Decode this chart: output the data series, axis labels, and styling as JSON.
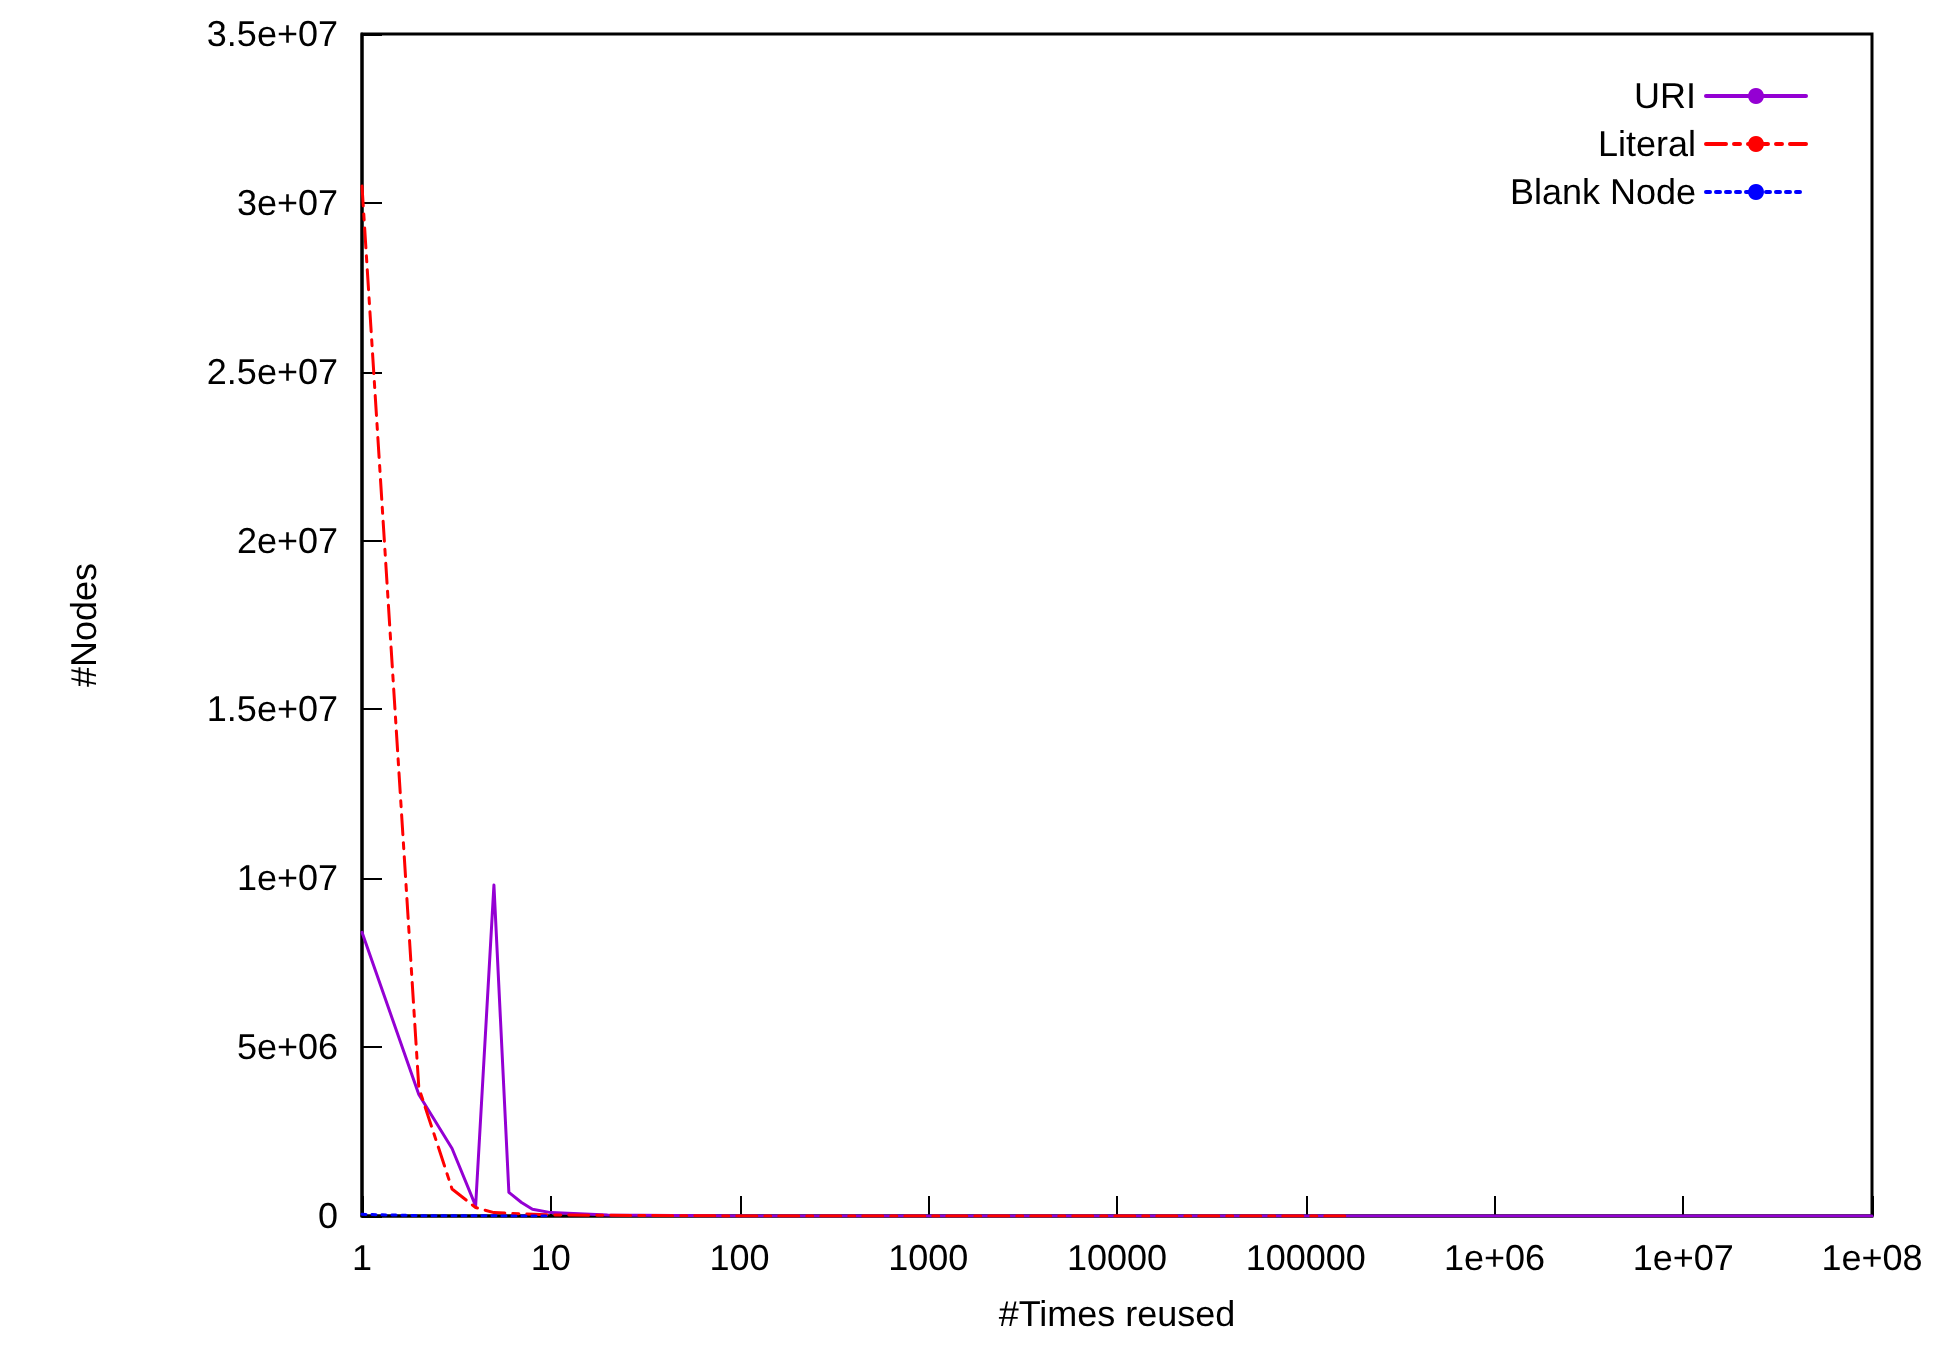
{
  "chart_data": {
    "type": "line",
    "xlabel": "#Times reused",
    "ylabel": "#Nodes",
    "log": "x",
    "xlim": [
      1,
      100000000
    ],
    "xticks": [
      1,
      10,
      100,
      1000,
      10000,
      100000,
      {
        "value": 1000000,
        "label": "1e+06"
      },
      {
        "value": 10000000,
        "label": "1e+07"
      },
      {
        "value": 100000000,
        "label": "1e+08"
      }
    ],
    "ylim": [
      0,
      35000000
    ],
    "yticks": [
      0,
      {
        "value": 5000000,
        "label": "5e+06"
      },
      {
        "value": 10000000,
        "label": "1e+07"
      },
      {
        "value": 15000000,
        "label": "1.5e+07"
      },
      {
        "value": 20000000,
        "label": "2e+07"
      },
      {
        "value": 25000000,
        "label": "2.5e+07"
      },
      {
        "value": 30000000,
        "label": "3e+07"
      },
      {
        "value": 35000000,
        "label": "3.5e+07"
      }
    ],
    "grid": false,
    "legend": "top right",
    "marker": "none",
    "series": [
      {
        "name": "URI",
        "color": "#9400d3",
        "line_style": "solid",
        "x": [
          1,
          2,
          3,
          4,
          5,
          6,
          7,
          8,
          10,
          20,
          100,
          100000000
        ],
        "values": [
          8400000,
          3600000,
          2000000,
          300000,
          9800000,
          700000,
          400000,
          200000,
          100000,
          30000,
          0,
          0
        ]
      },
      {
        "name": "Literal",
        "color": "#ff0000",
        "line_style": "dashed",
        "x": [
          1,
          2,
          3,
          4,
          5,
          10,
          100,
          170000
        ],
        "values": [
          30500000,
          3800000,
          800000,
          250000,
          100000,
          30000,
          0,
          0
        ]
      },
      {
        "name": "Blank Node",
        "color": "#0000ff",
        "line_style": "dotted",
        "x": [
          1,
          2,
          10
        ],
        "values": [
          50000,
          10000,
          0
        ]
      }
    ]
  }
}
